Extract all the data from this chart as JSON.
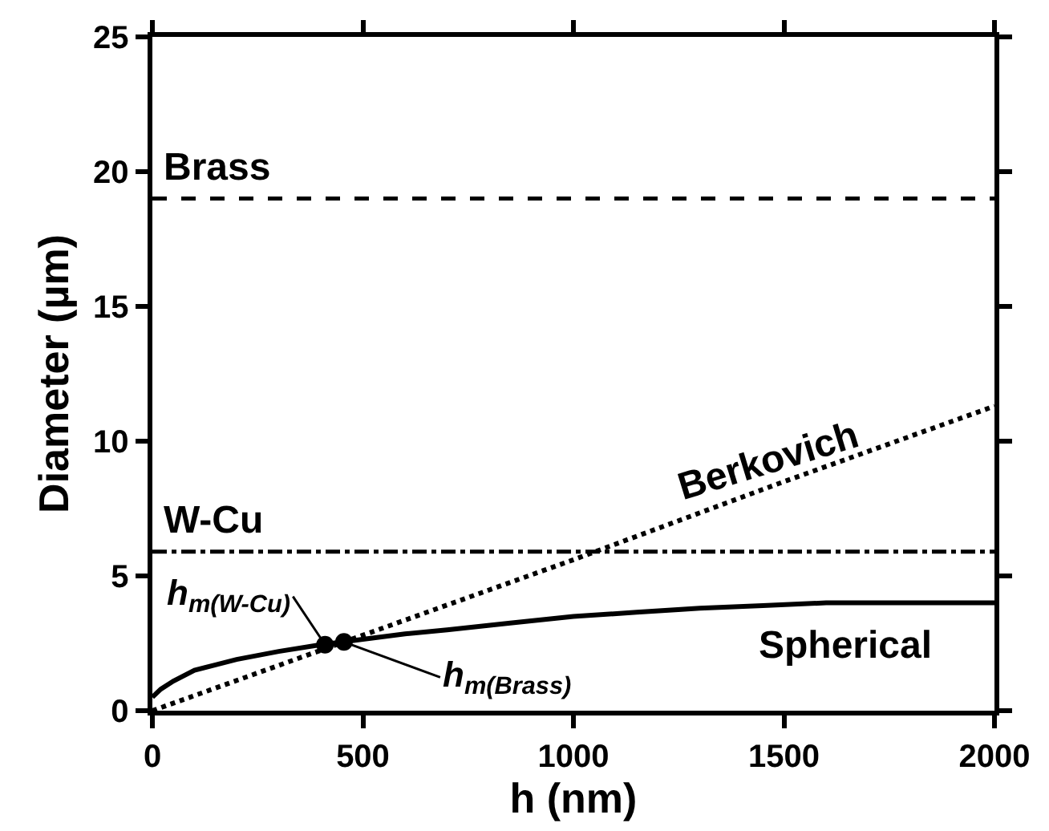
{
  "chart_data": {
    "type": "line",
    "xlabel": "h (nm)",
    "ylabel": "Diameter (µm)",
    "xlim": [
      0,
      2000
    ],
    "xticks": [
      0,
      500,
      1000,
      1500,
      2000
    ],
    "ylim": [
      0,
      25
    ],
    "yticks": [
      0,
      5,
      10,
      15,
      20,
      25
    ],
    "series": [
      {
        "name": "Spherical",
        "color": "#000000",
        "line_style": "solid",
        "marker": "none",
        "x": [
          0,
          20,
          50,
          100,
          150,
          200,
          300,
          400,
          500,
          600,
          700,
          850,
          1000,
          1150,
          1300,
          1450,
          1600,
          1800,
          2000
        ],
        "values": [
          0.5,
          0.8,
          1.1,
          1.5,
          1.7,
          1.9,
          2.2,
          2.45,
          2.65,
          2.85,
          3.0,
          3.25,
          3.5,
          3.65,
          3.8,
          3.9,
          4.0,
          4.0,
          4.0
        ]
      },
      {
        "name": "Berkovich",
        "color": "#000000",
        "line_style": "dotted",
        "marker": "none",
        "x": [
          0,
          500,
          1000,
          1500,
          2000
        ],
        "values": [
          0,
          2.8,
          5.6,
          8.5,
          11.3
        ]
      },
      {
        "type": "scatter",
        "color": "#000000",
        "marker": "circle",
        "x": [
          410,
          455
        ],
        "values": [
          2.45,
          2.55
        ]
      }
    ],
    "ref_lines": [
      {
        "axis": "y",
        "value": 19,
        "label": "Brass",
        "line_style": "dashed",
        "color": "#000000"
      },
      {
        "axis": "y",
        "value": 5.9,
        "label": "W-Cu",
        "line_style": "dashdot",
        "color": "#000000"
      }
    ],
    "annotations": [
      {
        "text": "h$_{m(W-Cu)}$",
        "x": 410,
        "y": 2.45
      },
      {
        "text": "h$_{m(Brass)}$",
        "x": 455,
        "y": 2.55
      }
    ]
  }
}
